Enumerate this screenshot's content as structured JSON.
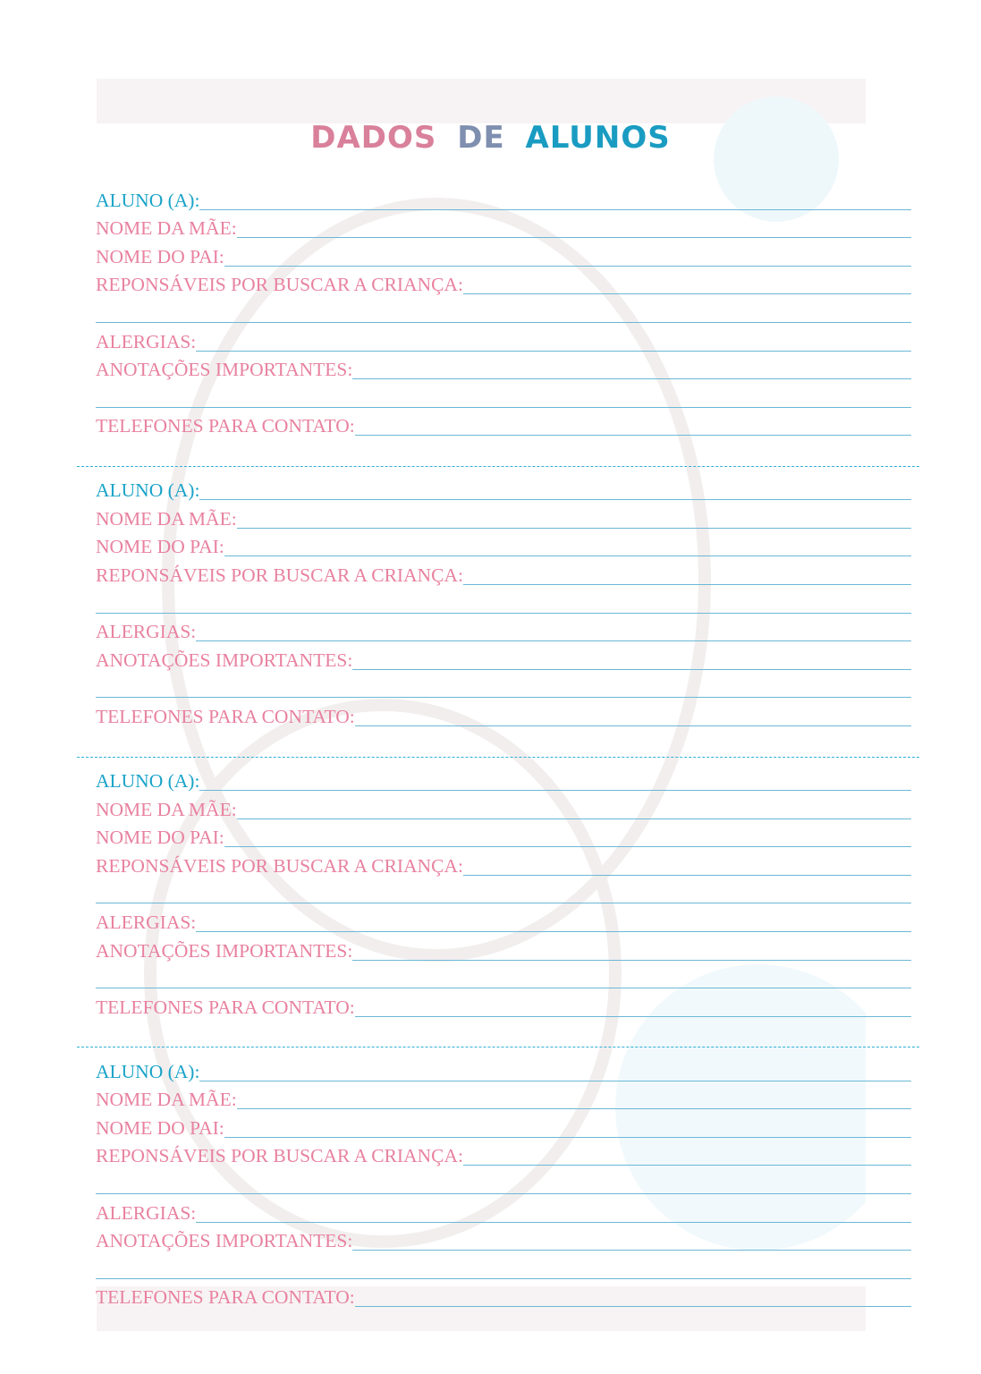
{
  "title": {
    "words": [
      "DADOS",
      "DE",
      "ALUNOS"
    ],
    "colors": [
      "#d9809b",
      "#7f8fb0",
      "#1a9cc2"
    ]
  },
  "colors": {
    "accent_blue": "#1aa3c8",
    "label_pink": "#e8819f",
    "rule_line": "#6bb8d6"
  },
  "blocks": [
    {
      "fields": [
        "ALUNO (A):",
        "NOME DA MÃE:",
        "NOME DO PAI:",
        "REPONSÁVEIS POR BUSCAR A CRIANÇA:",
        "",
        "ALERGIAS:",
        "ANOTAÇÕES IMPORTANTES:",
        "",
        "TELEFONES PARA CONTATO:"
      ]
    },
    {
      "fields": [
        "ALUNO (A):",
        "NOME DA MÃE:",
        "NOME DO PAI:",
        "REPONSÁVEIS POR BUSCAR A CRIANÇA:",
        "",
        "ALERGIAS:",
        "ANOTAÇÕES IMPORTANTES:",
        "",
        "TELEFONES PARA CONTATO:"
      ]
    },
    {
      "fields": [
        "ALUNO (A):",
        "NOME DA MÃE:",
        "NOME DO PAI:",
        "REPONSÁVEIS POR BUSCAR A CRIANÇA:",
        "",
        "ALERGIAS:",
        "ANOTAÇÕES IMPORTANTES:",
        "",
        "TELEFONES PARA CONTATO:"
      ]
    },
    {
      "fields": [
        "ALUNO (A):",
        "NOME DA MÃE:",
        "NOME DO PAI:",
        "REPONSÁVEIS POR BUSCAR A CRIANÇA:",
        "",
        "ALERGIAS:",
        "ANOTAÇÕES IMPORTANTES:",
        "",
        "TELEFONES PARA CONTATO:"
      ]
    }
  ]
}
